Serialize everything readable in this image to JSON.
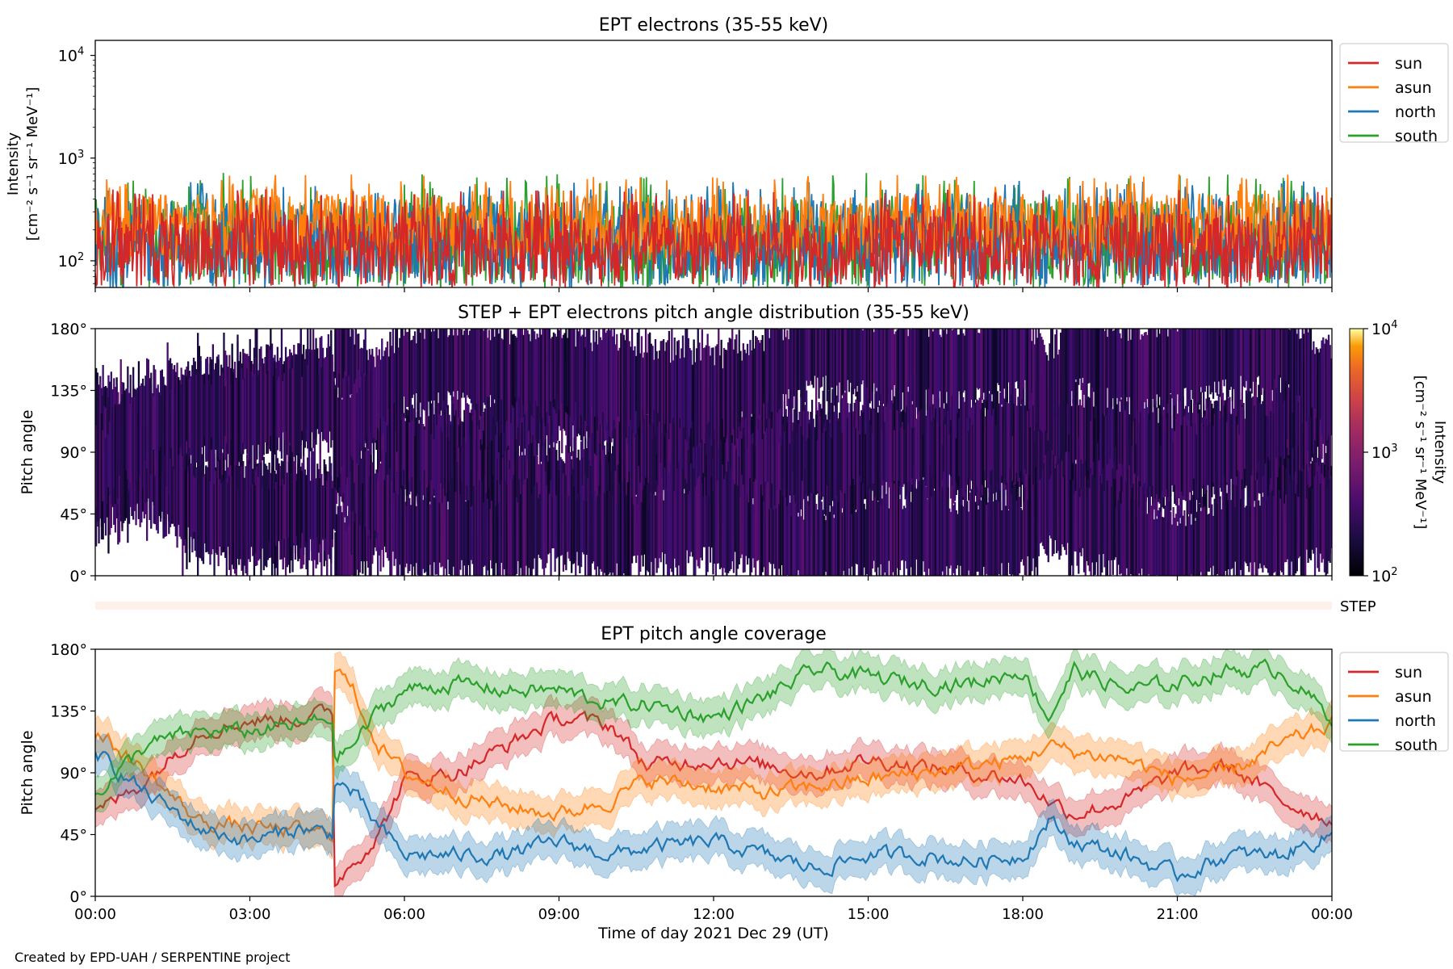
{
  "credit": "Created by EPD-UAH / SERPENTINE project",
  "chart_data": [
    {
      "type": "line",
      "title": "EPT electrons (35-55 keV)",
      "ylabel_line1": "Intensity",
      "ylabel_line2": "[cm⁻² s⁻¹ sr⁻¹ MeV⁻¹]",
      "yscale": "log",
      "ylim": [
        55,
        14000
      ],
      "yticks": [
        {
          "value": 100,
          "base": "10",
          "exp": "2"
        },
        {
          "value": 1000,
          "base": "10",
          "exp": "3"
        },
        {
          "value": 10000,
          "base": "10",
          "exp": "4"
        }
      ],
      "xlim_hours": [
        0,
        24
      ],
      "legend_position": "outside-right-top",
      "series": [
        {
          "name": "sun",
          "color": "#d62728",
          "typical_range": [
            55,
            300
          ],
          "peak": 500
        },
        {
          "name": "asun",
          "color": "#ff7f0e",
          "typical_range": [
            100,
            450
          ],
          "peak": 700
        },
        {
          "name": "north",
          "color": "#1f77b4",
          "typical_range": [
            55,
            400
          ],
          "peak": 600
        },
        {
          "name": "south",
          "color": "#2ca02c",
          "typical_range": [
            55,
            400
          ],
          "peak": 720
        }
      ]
    },
    {
      "type": "heatmap",
      "title": "STEP + EPT electrons pitch angle distribution (35-55 keV)",
      "ylabel": "Pitch angle",
      "yticks": [
        "0°",
        "45°",
        "90°",
        "135°",
        "180°"
      ],
      "ylim": [
        0,
        180
      ],
      "xlim_hours": [
        0,
        24
      ],
      "colorbar": {
        "label_line1": "Intensity",
        "label_line2": "[cm⁻² s⁻¹ sr⁻¹ MeV⁻¹]",
        "scale": "log",
        "range": [
          100,
          10000
        ],
        "ticks": [
          {
            "value": 100,
            "base": "10",
            "exp": "2"
          },
          {
            "value": 1000,
            "base": "10",
            "exp": "3"
          },
          {
            "value": 10000,
            "base": "10",
            "exp": "4"
          }
        ]
      },
      "step_label": "STEP"
    },
    {
      "type": "line",
      "title": "EPT pitch angle coverage",
      "ylabel": "Pitch angle",
      "yticks": [
        "0°",
        "45°",
        "90°",
        "135°",
        "180°"
      ],
      "ylim": [
        0,
        180
      ],
      "xlim_hours": [
        0,
        24
      ],
      "xticks": [
        "00:00",
        "03:00",
        "06:00",
        "09:00",
        "12:00",
        "15:00",
        "18:00",
        "21:00",
        "00:00"
      ],
      "xlabel": "Time of day 2021 Dec 29 (UT)",
      "legend_position": "outside-right-top",
      "series": [
        {
          "name": "sun",
          "color": "#d62728",
          "x": [
            0,
            1,
            2,
            3,
            4,
            4.6,
            4.65,
            5,
            5.5,
            6,
            7,
            8,
            9,
            10,
            10.7,
            12,
            13,
            14,
            15,
            16,
            17,
            18,
            18.5,
            19,
            20,
            21,
            22,
            23,
            24
          ],
          "y": [
            60,
            85,
            120,
            128,
            130,
            135,
            10,
            25,
            45,
            85,
            90,
            110,
            130,
            125,
            95,
            100,
            95,
            90,
            100,
            95,
            90,
            85,
            70,
            60,
            70,
            90,
            95,
            70,
            55
          ]
        },
        {
          "name": "asun",
          "color": "#ff7f0e",
          "x": [
            0,
            1,
            2,
            3,
            4,
            4.6,
            4.65,
            5,
            5.5,
            6,
            7,
            8,
            9,
            10,
            10.7,
            12,
            13,
            14,
            15,
            16,
            17,
            18,
            18.5,
            19,
            20,
            21,
            22,
            23,
            24
          ],
          "y": [
            120,
            90,
            55,
            50,
            48,
            45,
            170,
            150,
            110,
            90,
            75,
            65,
            60,
            70,
            85,
            80,
            75,
            80,
            85,
            90,
            95,
            100,
            110,
            105,
            100,
            85,
            90,
            110,
            125
          ]
        },
        {
          "name": "north",
          "color": "#1f77b4",
          "x": [
            0,
            1,
            2,
            3,
            4,
            4.6,
            4.65,
            5,
            5.5,
            6,
            7,
            8,
            9,
            10,
            10.7,
            12,
            13,
            14,
            15,
            16,
            17,
            18,
            18.5,
            19,
            20,
            21,
            22,
            23,
            24
          ],
          "y": [
            105,
            75,
            50,
            40,
            50,
            45,
            85,
            75,
            50,
            30,
            30,
            30,
            40,
            30,
            35,
            40,
            30,
            20,
            30,
            30,
            25,
            30,
            55,
            40,
            30,
            15,
            30,
            30,
            45
          ]
        },
        {
          "name": "south",
          "color": "#2ca02c",
          "x": [
            0,
            1,
            2,
            3,
            4,
            4.6,
            4.65,
            5,
            5.5,
            6,
            7,
            8,
            9,
            10,
            10.7,
            12,
            13,
            14,
            15,
            16,
            17,
            18,
            18.5,
            19,
            20,
            21,
            22,
            23,
            24
          ],
          "y": [
            75,
            110,
            120,
            120,
            125,
            130,
            100,
            110,
            135,
            150,
            155,
            150,
            150,
            140,
            140,
            130,
            145,
            165,
            160,
            155,
            155,
            165,
            130,
            165,
            150,
            155,
            165,
            165,
            130
          ]
        }
      ]
    }
  ]
}
